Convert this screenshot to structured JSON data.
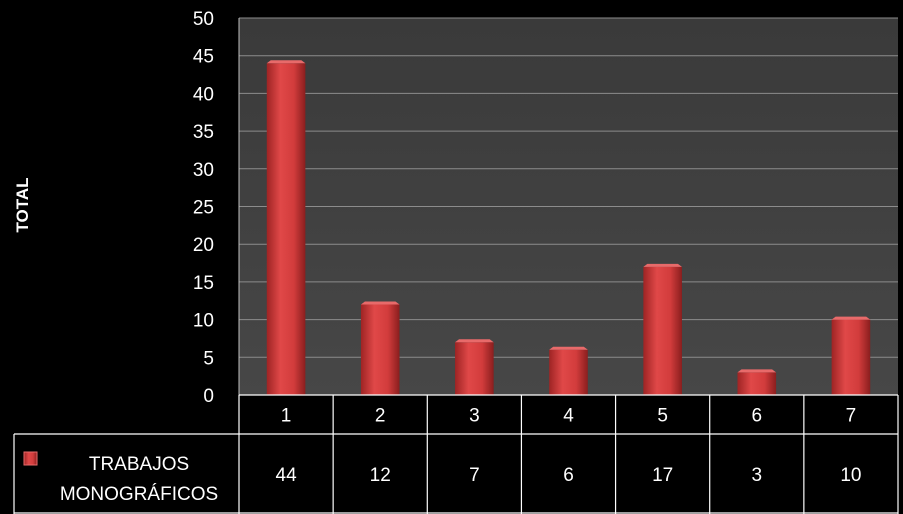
{
  "chart_data": {
    "type": "bar",
    "title": "",
    "xlabel": "",
    "ylabel": "TOTAL",
    "ylim": [
      0,
      50
    ],
    "ytick_step": 5,
    "yticks": [
      "0",
      "5",
      "10",
      "15",
      "20",
      "25",
      "30",
      "35",
      "40",
      "45",
      "50"
    ],
    "categories": [
      "1",
      "2",
      "3",
      "4",
      "5",
      "6",
      "7"
    ],
    "series": [
      {
        "name": "TRABAJOS MONOGRÁFICOS",
        "name_lines": [
          "TRABAJOS",
          "MONOGRÁFICOS"
        ],
        "values": [
          44,
          12,
          7,
          6,
          17,
          3,
          10
        ],
        "value_labels": [
          "44",
          "12",
          "7",
          "6",
          "17",
          "3",
          "10"
        ],
        "color": "#d23c3c"
      }
    ],
    "grid": true,
    "legend": "data-table",
    "colors": {
      "background": "#000000",
      "plot_area": "#404040",
      "gridline": "#8c8c8c",
      "bar": "#d23c3c",
      "bar_top": "#e86a6a",
      "text": "#ffffff"
    }
  }
}
